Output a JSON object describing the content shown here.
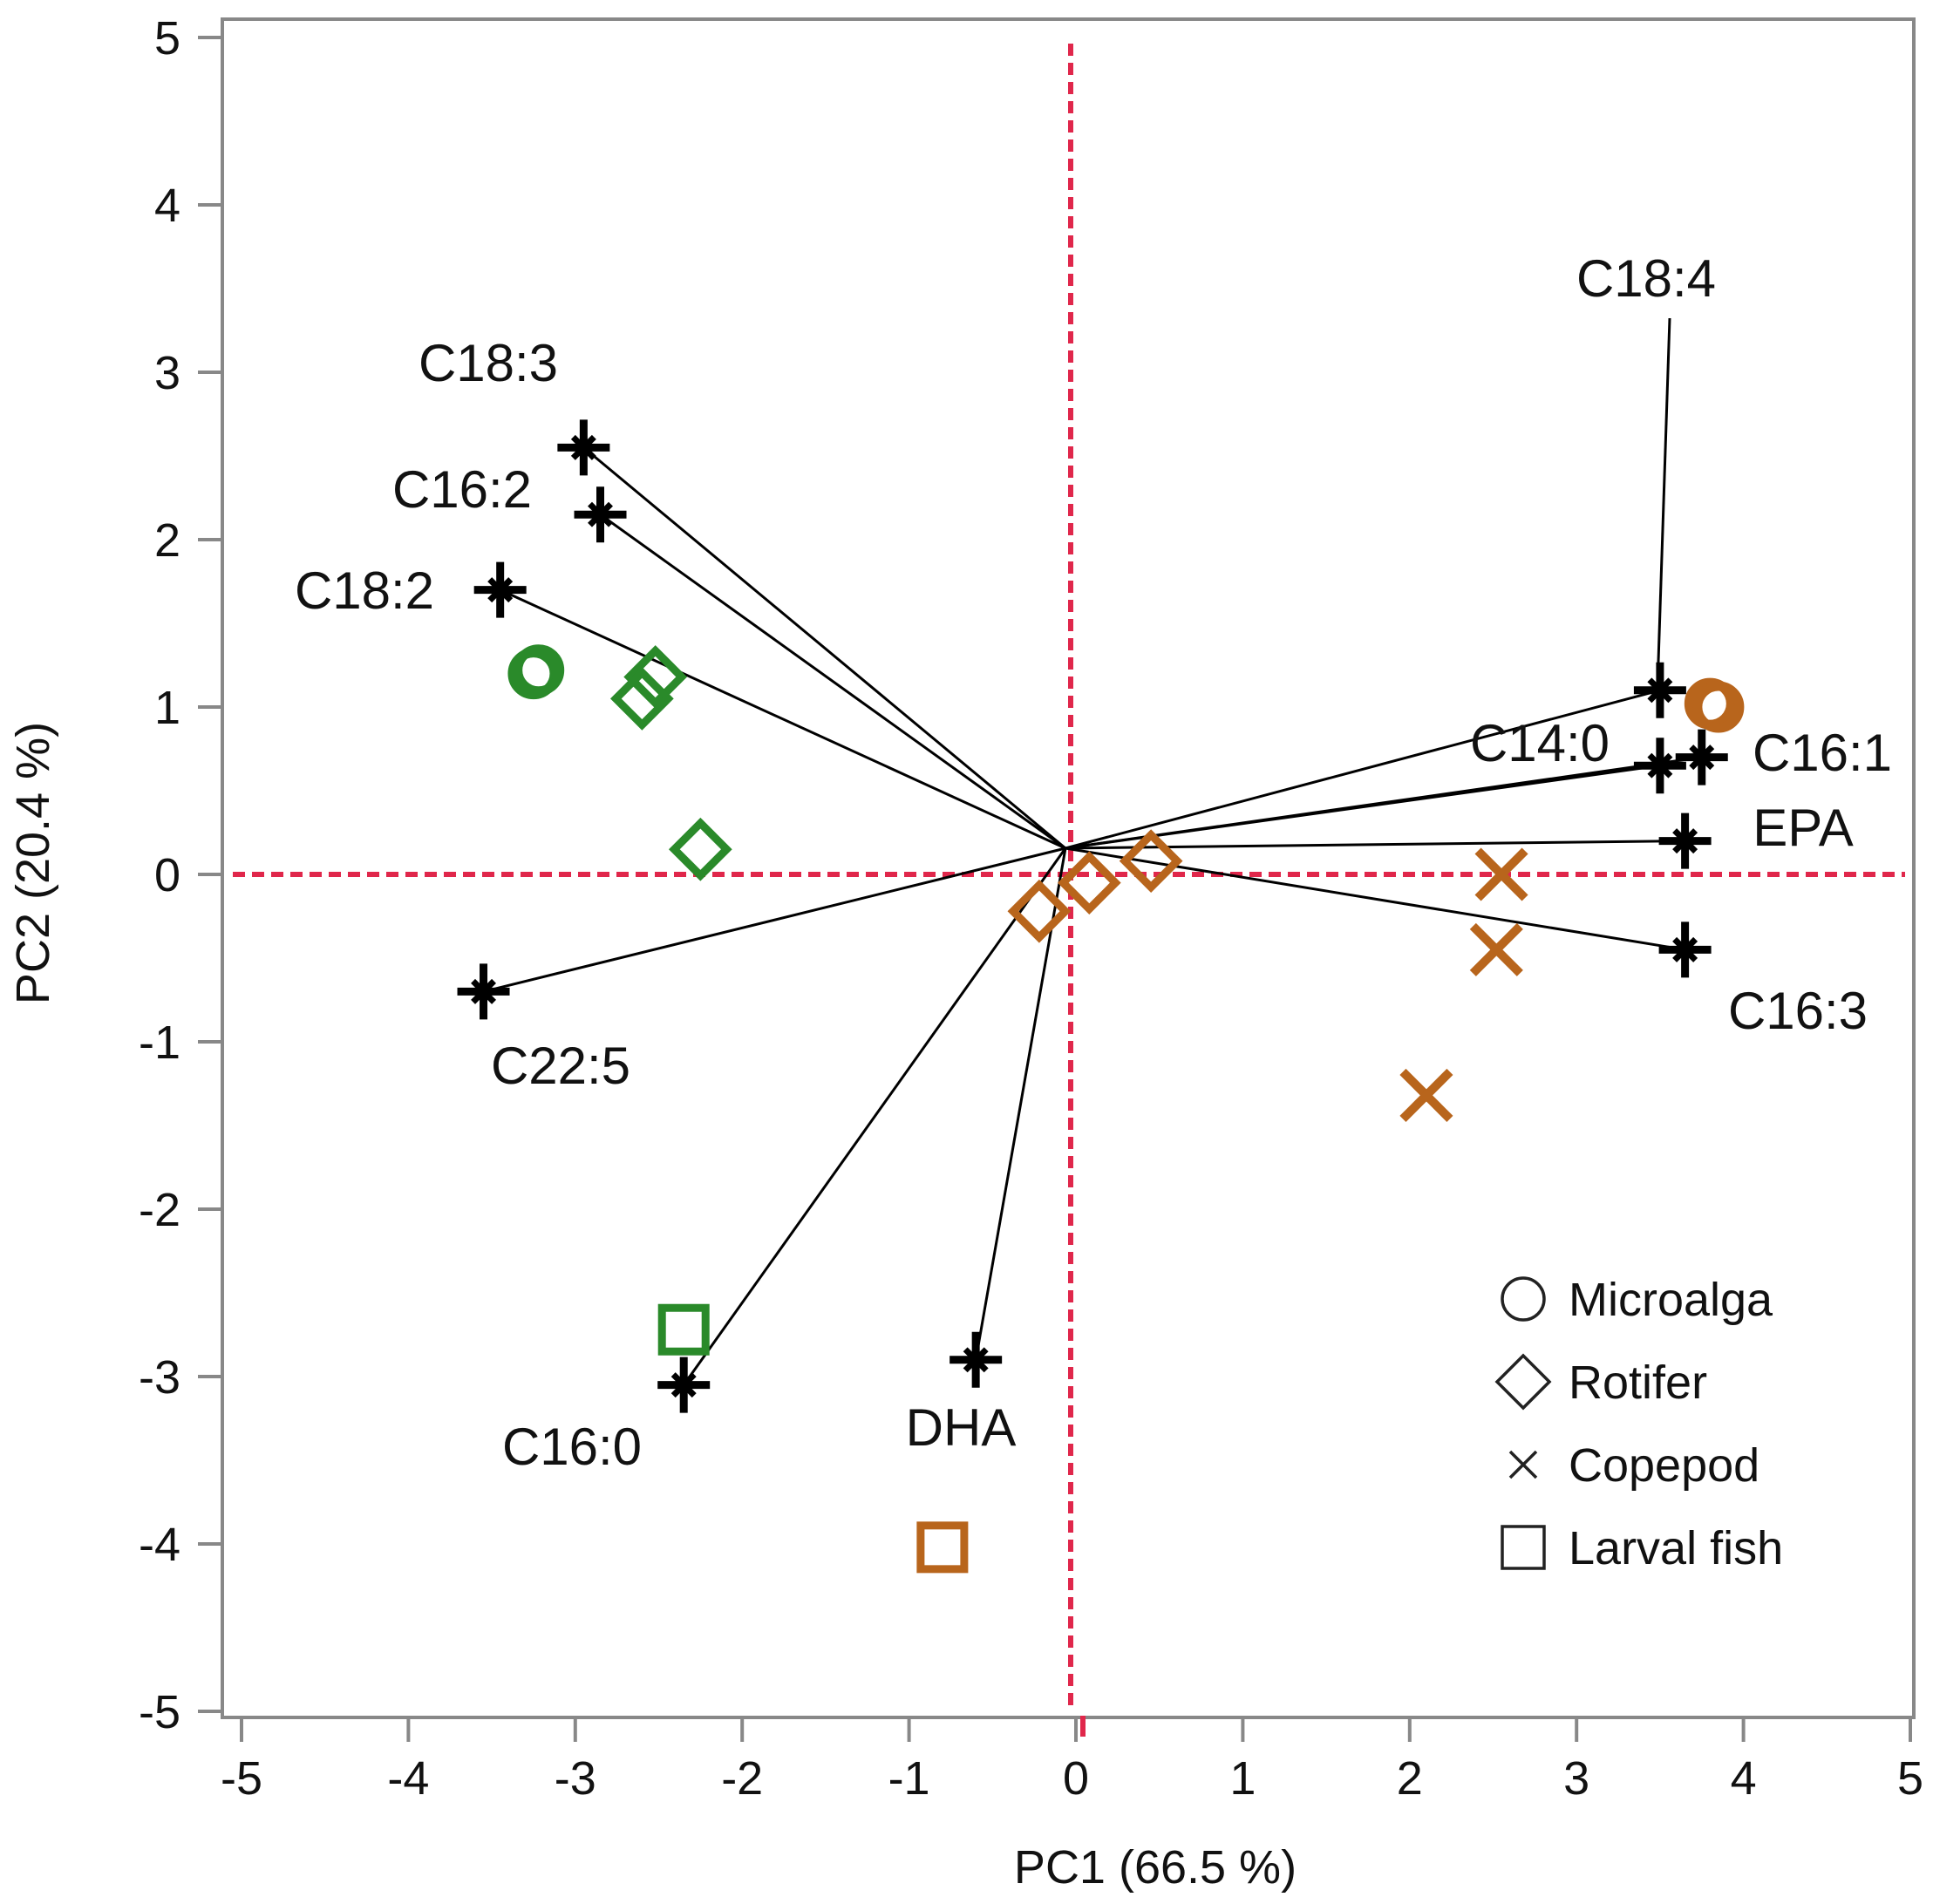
{
  "chart_data": {
    "type": "scatter",
    "subtype": "pca-biplot",
    "xlabel": "PC1  (66.5 %)",
    "ylabel": "PC2  (20.4 %)",
    "xlim": [
      -5,
      5
    ],
    "ylim": [
      -5,
      5
    ],
    "xticks": [
      "-5",
      "-4",
      "-3",
      "-2",
      "-1",
      "0",
      "1",
      "2",
      "3",
      "4",
      "5"
    ],
    "yticks": [
      "5",
      "4",
      "3",
      "2",
      "1",
      "0",
      "-1",
      "-2",
      "-3",
      "-4",
      "-5"
    ],
    "reference_lines": {
      "x": 0,
      "y": 0,
      "color": "#e0274b",
      "style": "dashed"
    },
    "colors": {
      "green": "#2a8a2a",
      "brown": "#b8651c",
      "loading": "#000000",
      "frame": "#888888"
    },
    "legend": {
      "placement": "bottom-right",
      "entries": [
        {
          "marker": "circle",
          "label": "Microalga"
        },
        {
          "marker": "diamond",
          "label": "Rotifer"
        },
        {
          "marker": "x",
          "label": "Copepod"
        },
        {
          "marker": "square",
          "label": "Larval fish"
        }
      ]
    },
    "loadings": [
      {
        "name": "C18:3",
        "x": -2.95,
        "y": 2.55
      },
      {
        "name": "C16:2",
        "x": -2.85,
        "y": 2.15
      },
      {
        "name": "C18:2",
        "x": -3.45,
        "y": 1.7
      },
      {
        "name": "C22:5",
        "x": -3.55,
        "y": -0.7
      },
      {
        "name": "C16:0",
        "x": -2.35,
        "y": -3.05
      },
      {
        "name": "DHA",
        "x": -0.6,
        "y": -2.9
      },
      {
        "name": "C18:4",
        "x": 3.5,
        "y": 1.1
      },
      {
        "name": "C14:0",
        "x": 3.5,
        "y": 0.65
      },
      {
        "name": "C16:1",
        "x": 3.75,
        "y": 0.7
      },
      {
        "name": "EPA",
        "x": 3.65,
        "y": 0.2
      },
      {
        "name": "C16:3",
        "x": 3.65,
        "y": -0.45
      }
    ],
    "loading_label_order": [
      "C18:3",
      "C16:2",
      "C18:2",
      "C22:5",
      "C16:0",
      "DHA",
      "C18:4",
      "C14:0",
      "C16:1",
      "EPA",
      "C16:3"
    ],
    "series": [
      {
        "name": "Microalga",
        "marker": "circle",
        "points": [
          {
            "x": -3.25,
            "y": 1.2,
            "color": "green"
          },
          {
            "x": -3.22,
            "y": 1.22,
            "color": "green"
          },
          {
            "x": 3.8,
            "y": 1.02,
            "color": "brown"
          },
          {
            "x": 3.85,
            "y": 1.0,
            "color": "brown"
          }
        ]
      },
      {
        "name": "Rotifer",
        "marker": "diamond",
        "points": [
          {
            "x": -2.52,
            "y": 1.18,
            "color": "green"
          },
          {
            "x": -2.6,
            "y": 1.05,
            "color": "green"
          },
          {
            "x": -2.25,
            "y": 0.15,
            "color": "green"
          },
          {
            "x": -0.22,
            "y": -0.22,
            "color": "brown"
          },
          {
            "x": 0.08,
            "y": -0.05,
            "color": "brown"
          },
          {
            "x": 0.45,
            "y": 0.08,
            "color": "brown"
          }
        ]
      },
      {
        "name": "Copepod",
        "marker": "x",
        "points": [
          {
            "x": 2.55,
            "y": 0.0,
            "color": "brown"
          },
          {
            "x": 2.52,
            "y": -0.45,
            "color": "brown"
          },
          {
            "x": 2.1,
            "y": -1.32,
            "color": "brown"
          }
        ]
      },
      {
        "name": "Larval fish",
        "marker": "square",
        "points": [
          {
            "x": -2.35,
            "y": -2.72,
            "color": "green"
          },
          {
            "x": -0.8,
            "y": -4.02,
            "color": "brown"
          }
        ]
      }
    ]
  }
}
